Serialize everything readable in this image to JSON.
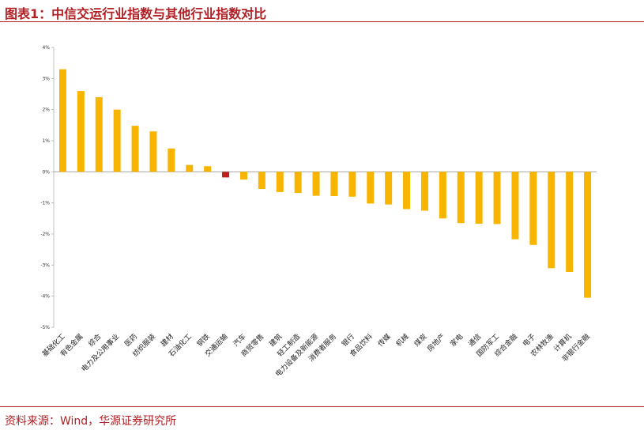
{
  "header": {
    "title": "图表1：中信交运行业指数与其他行业指数对比"
  },
  "footer": {
    "source": "资料来源：Wind，华源证券研究所"
  },
  "colors": {
    "accent": "#b01f24",
    "bar": "#f7b500",
    "highlight_bar": "#c0201c"
  },
  "chart_data": {
    "type": "bar",
    "title": "",
    "xlabel": "",
    "ylabel": "",
    "ylim": [
      -5,
      4
    ],
    "yticks": [
      4,
      3,
      2,
      1,
      0,
      -1,
      -2,
      -3,
      -4,
      -5
    ],
    "ytick_labels": [
      "4%",
      "3%",
      "2%",
      "1%",
      "0%",
      "-1%",
      "-2%",
      "-3%",
      "-4%",
      "-5%"
    ],
    "unit": "%",
    "grid": false,
    "legend": "none",
    "highlight_category": "交通运输",
    "categories": [
      "基础化工",
      "有色金属",
      "综合",
      "电力及公用事业",
      "医药",
      "纺织服装",
      "建材",
      "石油化工",
      "钢铁",
      "交通运输",
      "汽车",
      "商贸零售",
      "建筑",
      "轻工制造",
      "电力设备及新能源",
      "消费者服务",
      "银行",
      "食品饮料",
      "传媒",
      "机械",
      "煤炭",
      "房地产",
      "家电",
      "通信",
      "国防军工",
      "综合金融",
      "电子",
      "农林牧渔",
      "计算机",
      "非银行金融"
    ],
    "values": [
      3.3,
      2.6,
      2.4,
      2.0,
      1.48,
      1.3,
      0.75,
      0.22,
      0.18,
      -0.18,
      -0.25,
      -0.55,
      -0.65,
      -0.68,
      -0.77,
      -0.78,
      -0.8,
      -1.02,
      -1.05,
      -1.2,
      -1.25,
      -1.5,
      -1.65,
      -1.67,
      -1.68,
      -2.17,
      -2.35,
      -3.1,
      -3.22,
      -4.05
    ]
  }
}
